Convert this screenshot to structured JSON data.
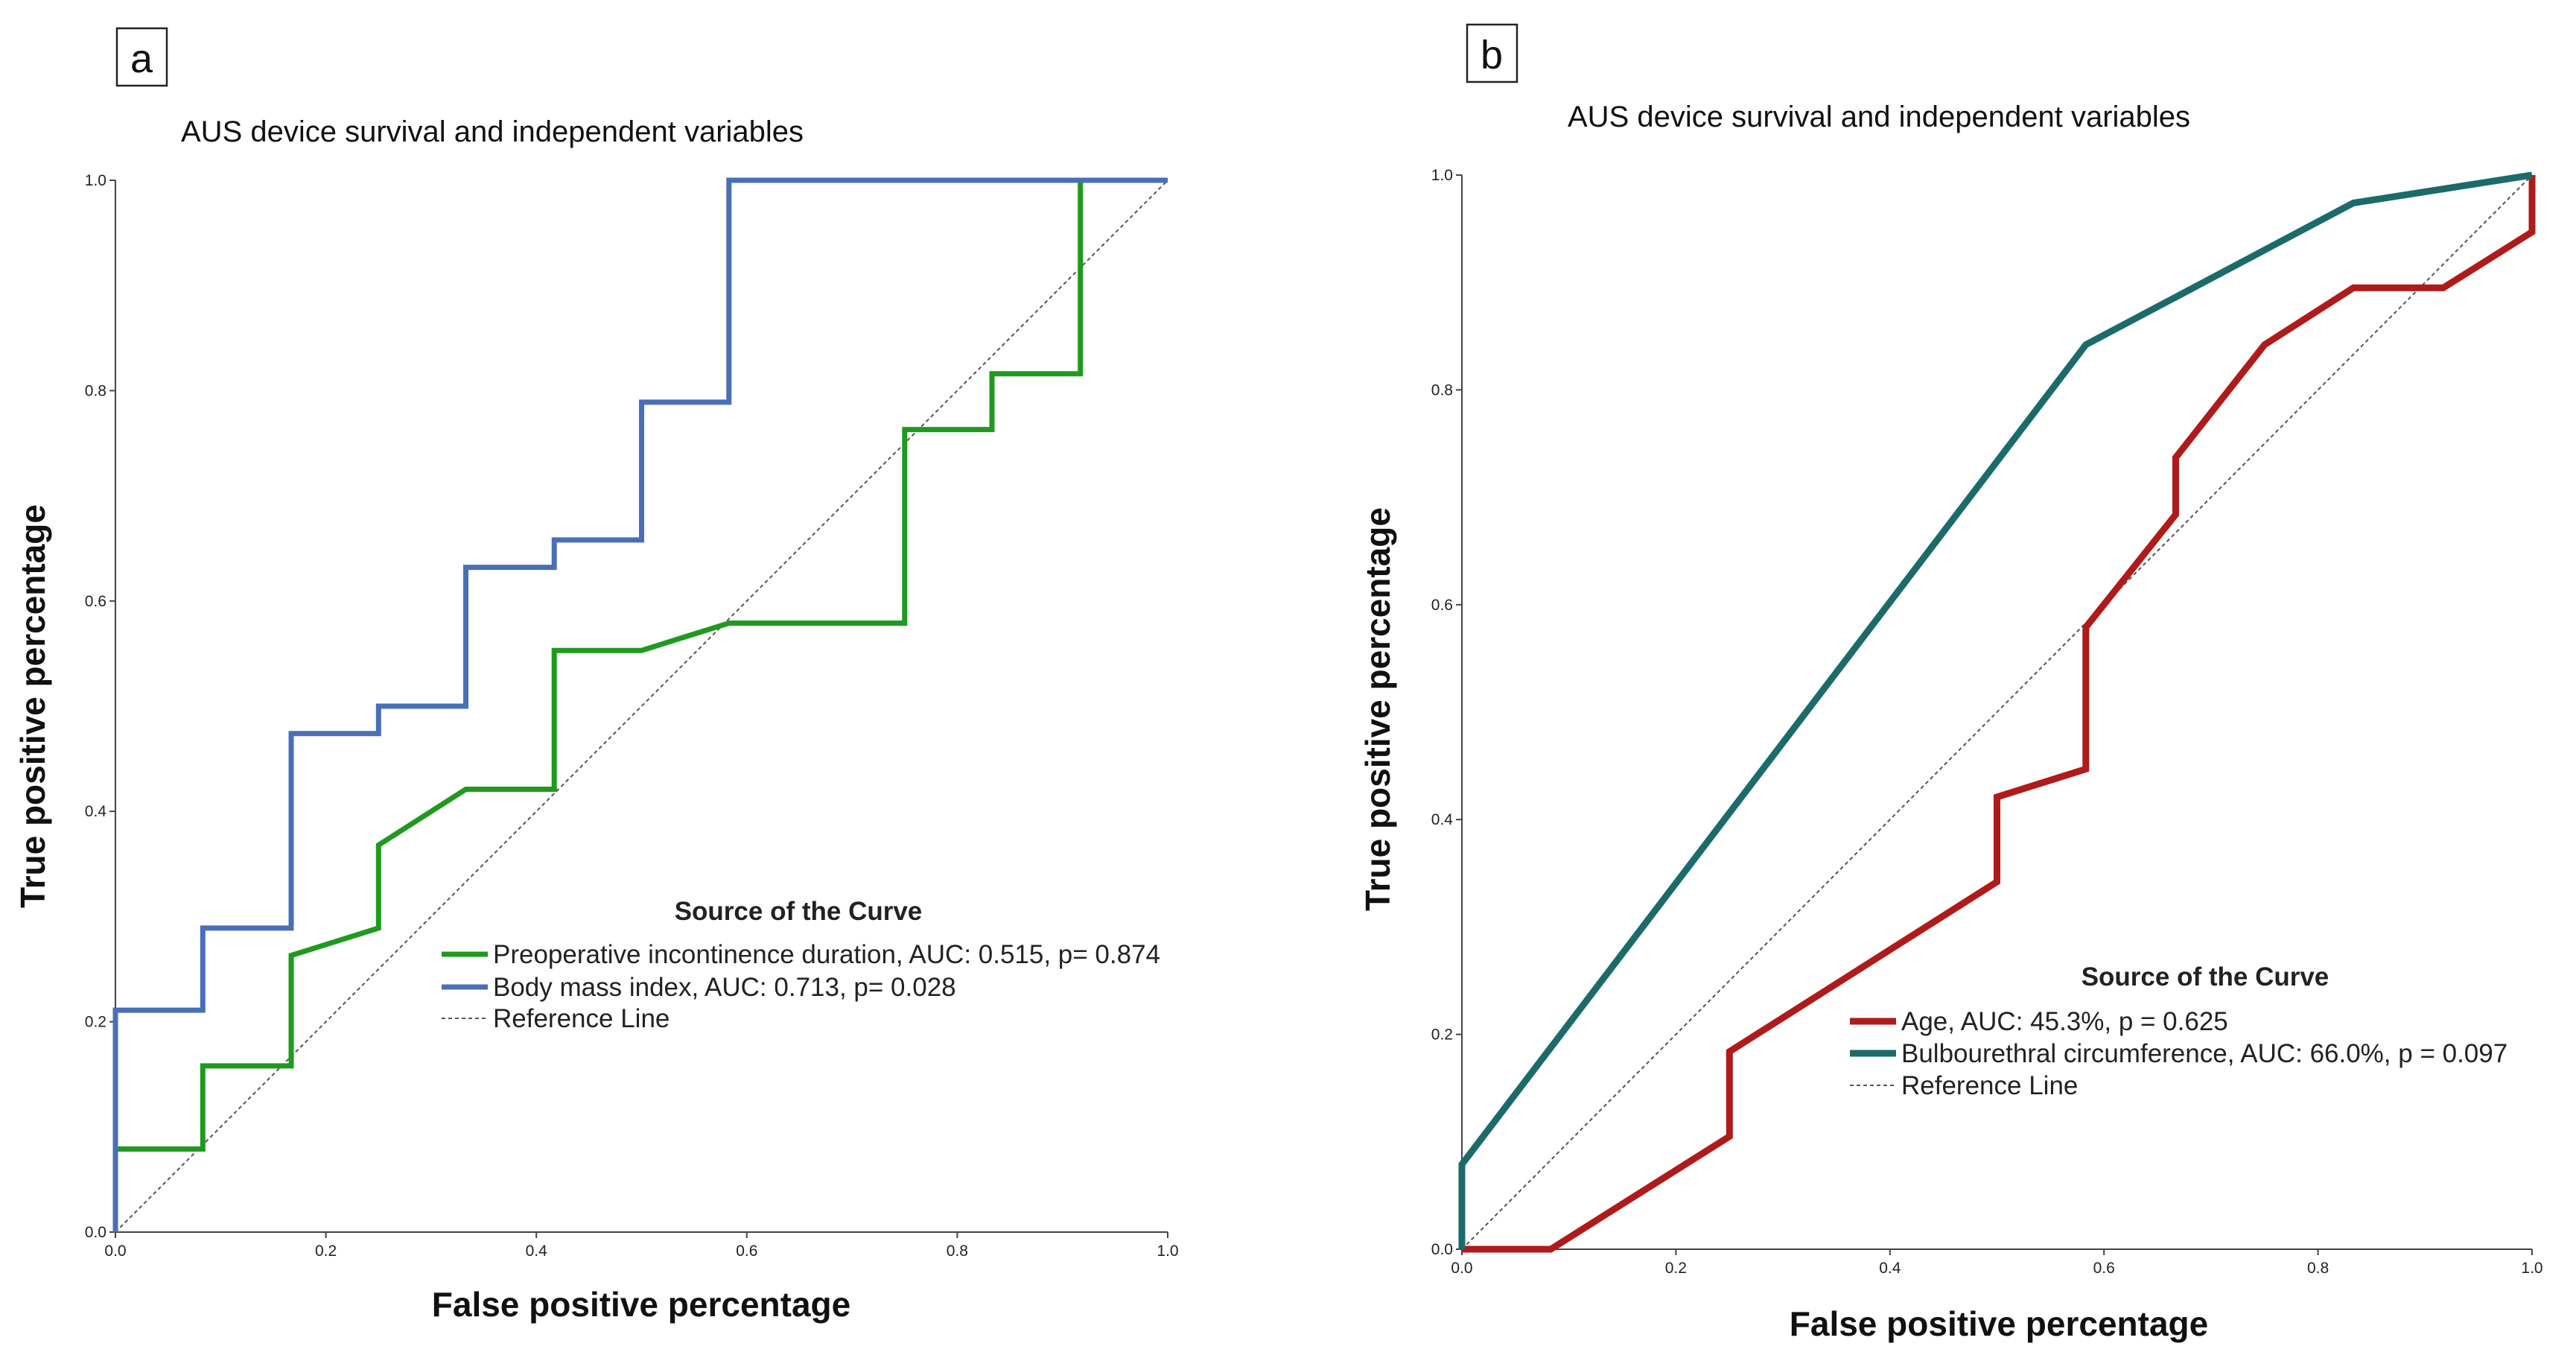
{
  "chart_data": [
    {
      "type": "line",
      "panel_label": "a",
      "title": "AUS device survival and independent variables",
      "xlabel": "False positive percentage",
      "ylabel": "True positive percentage",
      "xlim": [
        0,
        1
      ],
      "ylim": [
        0,
        1
      ],
      "xticks": [
        "0.0",
        "0.2",
        "0.4",
        "0.6",
        "0.8",
        "1.0"
      ],
      "yticks": [
        "0.0",
        "0.2",
        "0.4",
        "0.6",
        "0.8",
        "1.0"
      ],
      "legend_title": "Source of the Curve",
      "series": [
        {
          "name": "Preoperative incontinence duration, AUC: 0.515, p= 0.874",
          "color": "#1f9a1f",
          "x": [
            0,
            0,
            0.083,
            0.083,
            0.167,
            0.167,
            0.25,
            0.25,
            0.333,
            0.417,
            0.417,
            0.5,
            0.583,
            0.75,
            0.75,
            0.833,
            0.833,
            0.917,
            0.917
          ],
          "y": [
            0,
            0.079,
            0.079,
            0.158,
            0.158,
            0.263,
            0.289,
            0.368,
            0.421,
            0.421,
            0.553,
            0.553,
            0.579,
            0.579,
            0.763,
            0.763,
            0.816,
            0.816,
            1.0
          ]
        },
        {
          "name": "Body mass index, AUC: 0.713, p= 0.028",
          "color": "#4a6fb8",
          "x": [
            0,
            0,
            0.083,
            0.083,
            0.167,
            0.167,
            0.25,
            0.25,
            0.333,
            0.333,
            0.417,
            0.417,
            0.5,
            0.5,
            0.583,
            0.583,
            1.0
          ],
          "y": [
            0,
            0.211,
            0.211,
            0.289,
            0.289,
            0.474,
            0.474,
            0.5,
            0.5,
            0.632,
            0.632,
            0.658,
            0.658,
            0.789,
            0.789,
            1.0,
            1.0
          ]
        },
        {
          "name": "Reference Line",
          "color": "#555555",
          "dashed": true,
          "x": [
            0,
            1
          ],
          "y": [
            0,
            1
          ]
        }
      ]
    },
    {
      "type": "line",
      "panel_label": "b",
      "title": "AUS device survival and independent variables",
      "xlabel": "False positive percentage",
      "ylabel": "True positive percentage",
      "xlim": [
        0,
        1
      ],
      "ylim": [
        0,
        1
      ],
      "xticks": [
        "0.0",
        "0.2",
        "0.4",
        "0.6",
        "0.8",
        "1.0"
      ],
      "yticks": [
        "0.0",
        "0.2",
        "0.4",
        "0.6",
        "0.8",
        "1.0"
      ],
      "legend_title": "Source of the Curve",
      "series": [
        {
          "name": "Age, AUC: 45.3%, p = 0.625",
          "color": "#b01a1a",
          "x": [
            0,
            0.083,
            0.25,
            0.25,
            0.5,
            0.5,
            0.583,
            0.583,
            0.667,
            0.667,
            0.75,
            0.833,
            0.917,
            1.0,
            1.0
          ],
          "y": [
            0,
            0,
            0.105,
            0.184,
            0.342,
            0.421,
            0.447,
            0.579,
            0.684,
            0.737,
            0.842,
            0.895,
            0.895,
            0.947,
            1.0
          ]
        },
        {
          "name": "Bulbourethral circumference, AUC: 66.0%, p = 0.097",
          "color": "#1c6b6b",
          "x": [
            0,
            0,
            0.583,
            0.833,
            1.0
          ],
          "y": [
            0,
            0.079,
            0.842,
            0.974,
            1.0
          ]
        },
        {
          "name": "Reference Line",
          "color": "#555555",
          "dashed": true,
          "x": [
            0,
            1
          ],
          "y": [
            0,
            1
          ]
        }
      ]
    }
  ]
}
